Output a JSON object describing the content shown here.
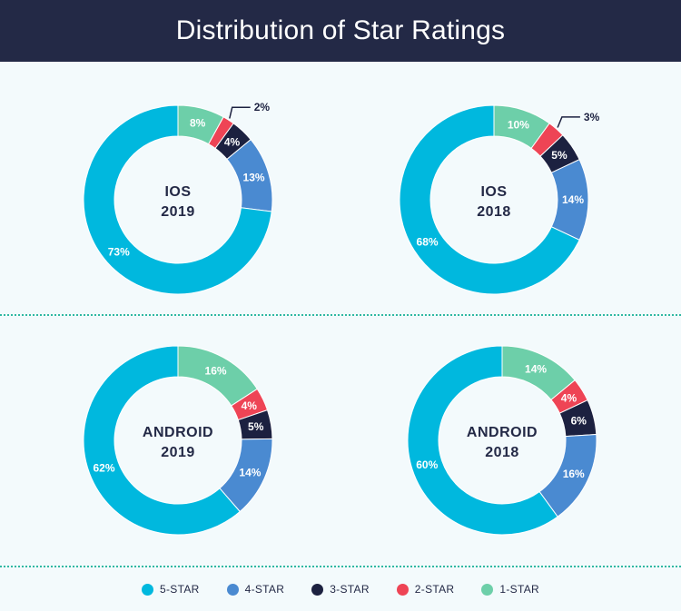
{
  "header": {
    "title": "Distribution of Star Ratings"
  },
  "colors": {
    "5-STAR": "#00b8de",
    "4-STAR": "#4a8ad1",
    "3-STAR": "#1c2140",
    "2-STAR": "#ee4455",
    "1-STAR": "#6dcfa9"
  },
  "legend": [
    "5-STAR",
    "4-STAR",
    "3-STAR",
    "2-STAR",
    "1-STAR"
  ],
  "chart_data": [
    {
      "type": "pie",
      "title_line1": "IOS",
      "title_line2": "2019",
      "categories": [
        "1-STAR",
        "2-STAR",
        "3-STAR",
        "4-STAR",
        "5-STAR"
      ],
      "values": [
        8,
        2,
        4,
        13,
        73
      ],
      "labels": [
        "8%",
        "2%",
        "4%",
        "13%",
        "73%"
      ]
    },
    {
      "type": "pie",
      "title_line1": "IOS",
      "title_line2": "2018",
      "categories": [
        "1-STAR",
        "2-STAR",
        "3-STAR",
        "4-STAR",
        "5-STAR"
      ],
      "values": [
        10,
        3,
        5,
        14,
        68
      ],
      "labels": [
        "10%",
        "3%",
        "5%",
        "14%",
        "68%"
      ]
    },
    {
      "type": "pie",
      "title_line1": "ANDROID",
      "title_line2": "2019",
      "categories": [
        "1-STAR",
        "2-STAR",
        "3-STAR",
        "4-STAR",
        "5-STAR"
      ],
      "values": [
        16,
        4,
        5,
        14,
        62
      ],
      "labels": [
        "16%",
        "4%",
        "5%",
        "14%",
        "62%"
      ]
    },
    {
      "type": "pie",
      "title_line1": "ANDROID",
      "title_line2": "2018",
      "categories": [
        "1-STAR",
        "2-STAR",
        "3-STAR",
        "4-STAR",
        "5-STAR"
      ],
      "values": [
        14,
        4,
        6,
        16,
        60
      ],
      "labels": [
        "14%",
        "4%",
        "6%",
        "16%",
        "60%"
      ]
    }
  ]
}
